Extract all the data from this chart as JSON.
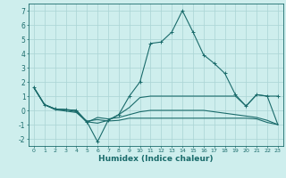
{
  "x": [
    0,
    1,
    2,
    3,
    4,
    5,
    6,
    7,
    8,
    9,
    10,
    11,
    12,
    13,
    14,
    15,
    16,
    17,
    18,
    19,
    20,
    21,
    22,
    23
  ],
  "line_main": [
    1.6,
    0.4,
    0.1,
    0.05,
    0.0,
    -0.8,
    -2.2,
    -0.7,
    -0.3,
    1.0,
    2.0,
    4.7,
    4.8,
    5.5,
    7.0,
    5.5,
    3.9,
    3.3,
    2.6,
    1.1,
    0.3,
    1.1,
    1.0,
    1.0
  ],
  "line_a": [
    1.6,
    0.4,
    0.1,
    0.05,
    0.0,
    -0.8,
    -0.9,
    -0.7,
    -0.3,
    0.2,
    0.9,
    1.0,
    1.0,
    1.0,
    1.0,
    1.0,
    1.0,
    1.0,
    1.0,
    1.0,
    0.3,
    1.1,
    1.0,
    -1.0
  ],
  "line_b": [
    1.6,
    0.4,
    0.1,
    0.05,
    -0.1,
    -0.85,
    -0.5,
    -0.6,
    -0.5,
    -0.3,
    -0.1,
    0.0,
    0.0,
    0.0,
    0.0,
    0.0,
    0.0,
    -0.1,
    -0.2,
    -0.3,
    -0.4,
    -0.5,
    -0.7,
    -1.0
  ],
  "line_c": [
    1.6,
    0.4,
    0.05,
    -0.05,
    -0.15,
    -0.75,
    -0.65,
    -0.75,
    -0.7,
    -0.55,
    -0.55,
    -0.55,
    -0.55,
    -0.55,
    -0.55,
    -0.55,
    -0.55,
    -0.55,
    -0.55,
    -0.55,
    -0.55,
    -0.6,
    -0.85,
    -1.0
  ],
  "bg_color": "#ceeeed",
  "grid_color": "#aad4d4",
  "line_color": "#1a6b6b",
  "ylabel_min": -2,
  "ylabel_max": 7,
  "xlabel": "Humidex (Indice chaleur)"
}
